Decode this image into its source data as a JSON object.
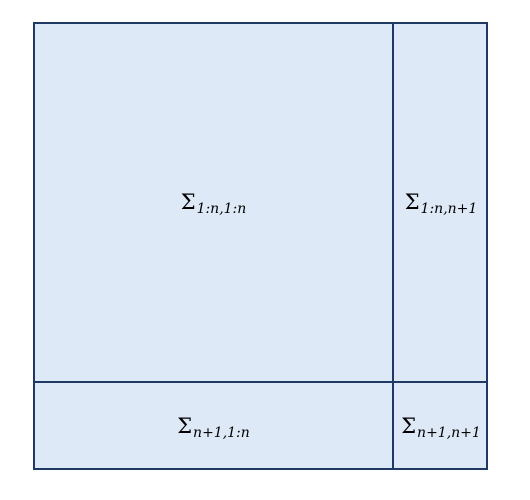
{
  "diagram": {
    "symbol": "Σ",
    "blocks": {
      "top_left": {
        "subscript": "1:n,1:n"
      },
      "top_right": {
        "subscript": "1:n,n+1"
      },
      "bottom_left": {
        "subscript": "n+1,1:n"
      },
      "bottom_right": {
        "subscript": "n+1,n+1"
      }
    },
    "colors": {
      "fill": "#dde9f6",
      "border": "#1f3864",
      "text": "#000000"
    }
  }
}
